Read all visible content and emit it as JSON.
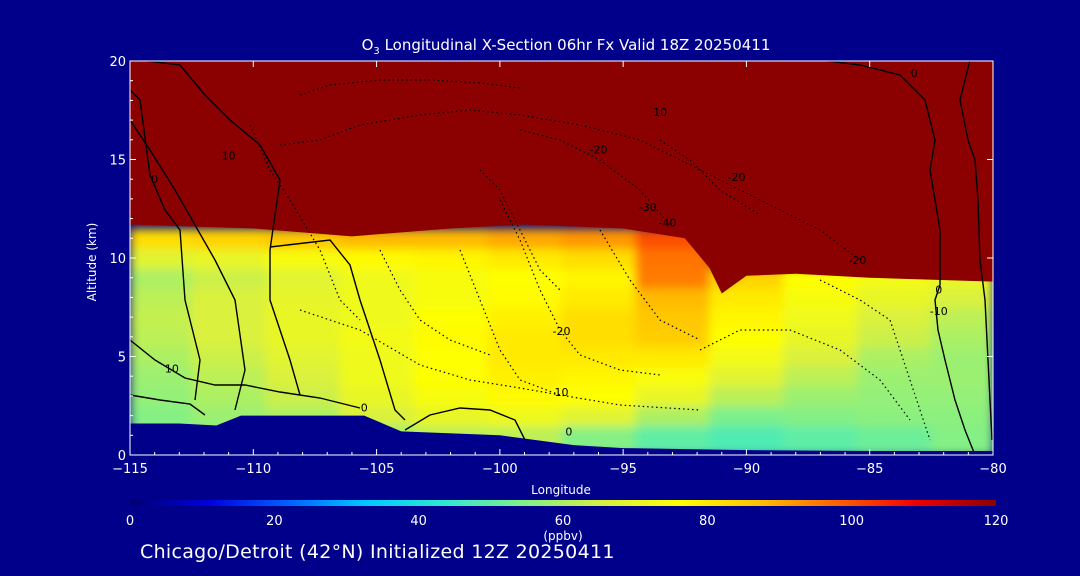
{
  "title_prefix": "O",
  "title_subscript": "3",
  "title_rest": " Longitudinal X-Section 06hr  Fx Valid 18Z 20250411",
  "footer": "Chicago/Detroit (42°N) Initialized 12Z 20250411",
  "colors": {
    "background": "#00008b",
    "terrain": "#00008b",
    "text": "#ffffff"
  },
  "chart_data": {
    "type": "heatmap",
    "xlabel": "Longitude",
    "ylabel": "Altitude (km)",
    "xlim": [
      -115,
      -80
    ],
    "ylim": [
      0,
      20
    ],
    "x_ticks": [
      -115,
      -110,
      -105,
      -100,
      -95,
      -90,
      -85,
      -80
    ],
    "x_tick_labels": [
      "−115",
      "−110",
      "−105",
      "−100",
      "−95",
      "−90",
      "−85",
      "−80"
    ],
    "y_ticks": [
      0,
      5,
      10,
      15,
      20
    ],
    "y_tick_labels": [
      "0",
      "5",
      "10",
      "15",
      "20"
    ],
    "colorbar": {
      "label": "(ppbv)",
      "range": [
        0,
        120
      ],
      "ticks": [
        0,
        20,
        40,
        60,
        80,
        100,
        120
      ],
      "tick_labels": [
        "0",
        "20",
        "40",
        "60",
        "80",
        "100",
        "120"
      ],
      "colors": [
        "#000070",
        "#0000dd",
        "#0060ff",
        "#00c8ff",
        "#30e8d0",
        "#80f088",
        "#d8f040",
        "#ffff00",
        "#ffc000",
        "#ff6000",
        "#ee0000",
        "#8b0000"
      ]
    },
    "tropopause_height_km": [
      [
        -115,
        11.7
      ],
      [
        -110,
        11.5
      ],
      [
        -106,
        11.1
      ],
      [
        -102,
        11.5
      ],
      [
        -99,
        11.7
      ],
      [
        -95,
        11.5
      ],
      [
        -92.5,
        11.0
      ],
      [
        -91.5,
        9.5
      ],
      [
        -91,
        8.2
      ],
      [
        -90,
        9.1
      ],
      [
        -88,
        9.2
      ],
      [
        -85,
        9.0
      ],
      [
        -80,
        8.8
      ]
    ],
    "ozone_field_ppbv": {
      "altitudes_km": [
        1,
        2,
        3,
        4,
        5,
        6,
        7,
        8,
        9,
        10,
        11
      ],
      "longitudes": [
        -114,
        -111,
        -108,
        -105,
        -102,
        -99,
        -96,
        -93,
        -90,
        -87,
        -84,
        -81
      ],
      "values": [
        [
          55,
          54,
          52,
          58,
          62,
          62,
          55,
          50,
          48,
          50,
          52,
          55
        ],
        [
          55,
          58,
          60,
          66,
          70,
          72,
          68,
          60,
          54,
          55,
          56,
          56
        ],
        [
          57,
          60,
          64,
          70,
          74,
          77,
          76,
          70,
          62,
          58,
          57,
          57
        ],
        [
          58,
          62,
          66,
          72,
          76,
          79,
          78,
          75,
          68,
          62,
          58,
          58
        ],
        [
          60,
          64,
          68,
          72,
          76,
          80,
          80,
          80,
          73,
          66,
          60,
          58
        ],
        [
          62,
          66,
          70,
          73,
          77,
          80,
          82,
          85,
          76,
          70,
          64,
          60
        ],
        [
          63,
          66,
          70,
          72,
          76,
          79,
          82,
          86,
          78,
          72,
          66,
          62
        ],
        [
          62,
          66,
          69,
          72,
          74,
          77,
          80,
          88,
          80,
          74,
          70,
          66
        ],
        [
          60,
          64,
          68,
          72,
          74,
          76,
          78,
          95,
          84,
          76,
          73,
          70
        ],
        [
          68,
          70,
          74,
          77,
          78,
          80,
          82,
          96,
          120,
          120,
          120,
          120
        ],
        [
          82,
          84,
          86,
          88,
          88,
          90,
          92,
          100,
          120,
          120,
          120,
          120
        ]
      ]
    },
    "terrain_height_km": [
      [
        -115,
        1.6
      ],
      [
        -113,
        1.6
      ],
      [
        -111.5,
        1.5
      ],
      [
        -110.5,
        2.0
      ],
      [
        -108,
        2.0
      ],
      [
        -105.5,
        2.0
      ],
      [
        -104,
        1.2
      ],
      [
        -100,
        1.0
      ],
      [
        -97,
        0.5
      ],
      [
        -95,
        0.35
      ],
      [
        -90,
        0.25
      ],
      [
        -85,
        0.2
      ],
      [
        -80,
        0.2
      ]
    ],
    "contour_labels": [
      {
        "text": "0",
        "lon": -114.0,
        "alt_km": 14.0
      },
      {
        "text": "10",
        "lon": -111.0,
        "alt_km": 15.2
      },
      {
        "text": "-20",
        "lon": -96.0,
        "alt_km": 15.5
      },
      {
        "text": "10",
        "lon": -93.5,
        "alt_km": 17.4
      },
      {
        "text": "0",
        "lon": -83.2,
        "alt_km": 19.4
      },
      {
        "text": "-30",
        "lon": -94.0,
        "alt_km": 12.6
      },
      {
        "text": "-40",
        "lon": -93.2,
        "alt_km": 11.8
      },
      {
        "text": "-20",
        "lon": -90.4,
        "alt_km": 14.1
      },
      {
        "text": "-20",
        "lon": -85.5,
        "alt_km": 9.9
      },
      {
        "text": "-10",
        "lon": -82.2,
        "alt_km": 7.3
      },
      {
        "text": "-20",
        "lon": -97.5,
        "alt_km": 6.3
      },
      {
        "text": "10",
        "lon": -113.3,
        "alt_km": 4.4
      },
      {
        "text": "10",
        "lon": -97.5,
        "alt_km": 3.2
      },
      {
        "text": "0",
        "lon": -105.5,
        "alt_km": 2.4
      },
      {
        "text": "0",
        "lon": -97.2,
        "alt_km": 1.2
      },
      {
        "text": "0",
        "lon": -82.2,
        "alt_km": 8.4
      }
    ]
  }
}
